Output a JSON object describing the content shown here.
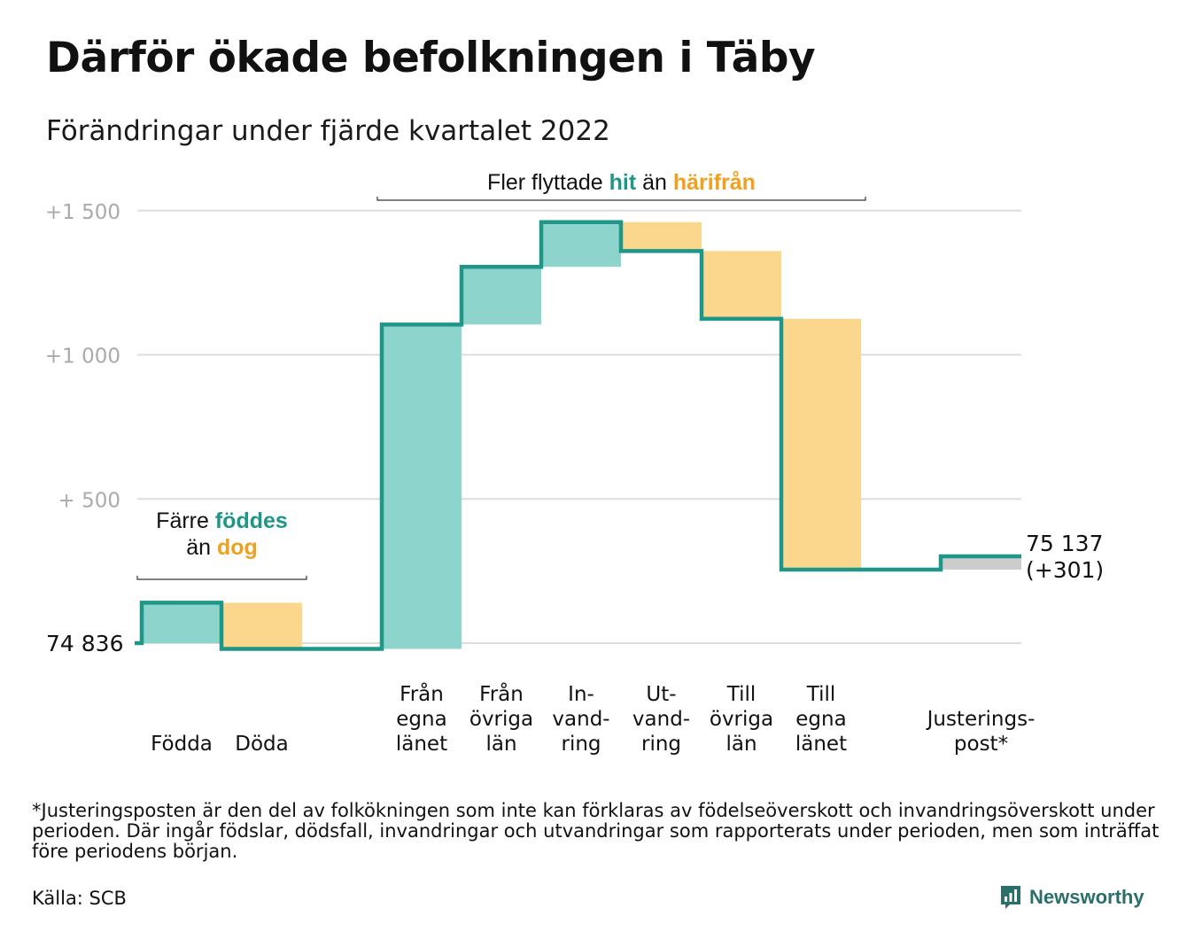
{
  "title": "Därför ökade befolkningen i Täby",
  "subtitle": "Förändringar under fjärde kvartalet 2022",
  "footnote": "*Justeringsposten är den del av folkökningen som inte kan förklaras av födelseöverskott och invandringsöverskott under perioden. Där ingår födslar, dödsfall, invandringar och utvandringar som rapporterats under perioden, men som inträffat före periodens början.",
  "source": "Källa: SCB",
  "brand": "Newsworthy",
  "colors": {
    "line": "#1e9688",
    "increase": "#8dd5cc",
    "decrease": "#fbd68d",
    "adjustment": "#cccccc",
    "grid": "#dddddd",
    "tick_text": "#aaaaaa",
    "highlight_teal": "#1e9688",
    "highlight_orange": "#f0a020"
  },
  "chart_data": {
    "type": "waterfall",
    "title": "Därför ökade befolkningen i Täby",
    "subtitle": "Förändringar under fjärde kvartalet 2022",
    "start_value": 74836,
    "start_label": "74 836",
    "end_label": [
      "75 137",
      "(+301)"
    ],
    "y_ticks": [
      {
        "value": 1500,
        "label": "+1 500"
      },
      {
        "value": 1000,
        "label": "+1 000"
      },
      {
        "value": 500,
        "label": "+ 500"
      }
    ],
    "ylim": [
      -25,
      1600
    ],
    "grid": true,
    "steps": [
      {
        "label": [
          "Födda"
        ],
        "change": 140,
        "kind": "increase"
      },
      {
        "label": [
          "Döda"
        ],
        "change": -160,
        "kind": "decrease"
      },
      {
        "label": [
          "Från",
          "egna",
          "länet"
        ],
        "change": 1125,
        "kind": "increase"
      },
      {
        "label": [
          "Från",
          "övriga",
          "län"
        ],
        "change": 200,
        "kind": "increase"
      },
      {
        "label": [
          "In-",
          "vand-",
          "ring"
        ],
        "change": 155,
        "kind": "increase"
      },
      {
        "label": [
          "Ut-",
          "vand-",
          "ring"
        ],
        "change": -100,
        "kind": "decrease"
      },
      {
        "label": [
          "Till",
          "övriga",
          "län"
        ],
        "change": -235,
        "kind": "decrease"
      },
      {
        "label": [
          "Till",
          "egna",
          "länet"
        ],
        "change": -870,
        "kind": "decrease"
      },
      {
        "label": [
          "Justerings-",
          "post*"
        ],
        "change": 46,
        "kind": "adjustment"
      }
    ],
    "annotations": [
      {
        "id": "birth-death",
        "parts": [
          {
            "text": "Färre ",
            "style": "normal"
          },
          {
            "text": "föddes",
            "style": "teal"
          },
          {
            "break": true
          },
          {
            "text": "än ",
            "style": "normal"
          },
          {
            "text": "dog",
            "style": "orange"
          }
        ],
        "span": [
          0,
          1
        ]
      },
      {
        "id": "migration",
        "parts": [
          {
            "text": "Fler flyttade ",
            "style": "normal"
          },
          {
            "text": "hit",
            "style": "teal"
          },
          {
            "text": " än ",
            "style": "normal"
          },
          {
            "text": "härifrån",
            "style": "orange"
          }
        ],
        "span": [
          2,
          7
        ]
      }
    ]
  }
}
